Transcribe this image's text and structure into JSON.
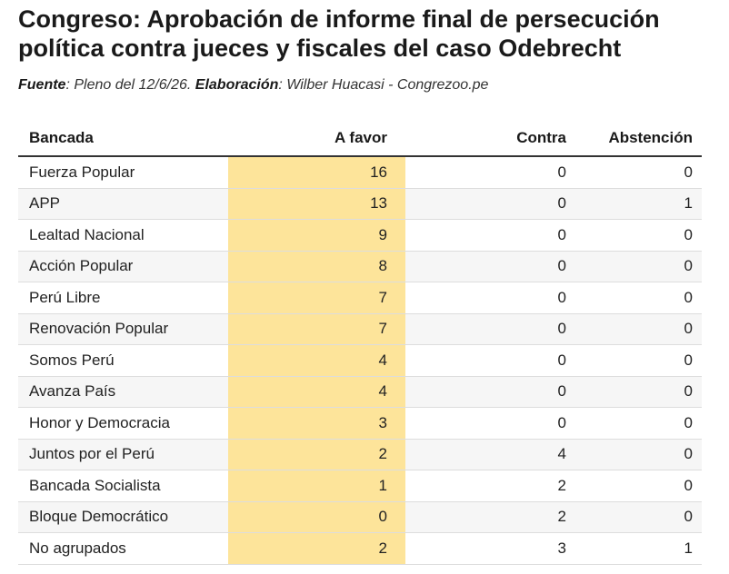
{
  "header": {
    "title": "Congreso: Aprobación de informe final de persecución política contra jueces y fiscales del caso Odebrecht",
    "source_label": "Fuente",
    "source_text": ": Pleno del 12/6/26. ",
    "credit_label": "Elaboración",
    "credit_text": ": Wilber Huacasi - Congrezoo.pe"
  },
  "colors": {
    "highlight": "#fde49a",
    "stripe": "#f6f6f6"
  },
  "chart_data": {
    "type": "table",
    "columns": [
      "Bancada",
      "A favor",
      "Contra",
      "Abstención"
    ],
    "rows": [
      {
        "bancada": "Fuerza Popular",
        "a_favor": "16",
        "contra": "0",
        "abstencion": "0"
      },
      {
        "bancada": "APP",
        "a_favor": "13",
        "contra": "0",
        "abstencion": "1"
      },
      {
        "bancada": "Lealtad Nacional",
        "a_favor": "9",
        "contra": "0",
        "abstencion": "0"
      },
      {
        "bancada": "Acción Popular",
        "a_favor": "8",
        "contra": "0",
        "abstencion": "0"
      },
      {
        "bancada": "Perú Libre",
        "a_favor": "7",
        "contra": "0",
        "abstencion": "0"
      },
      {
        "bancada": "Renovación Popular",
        "a_favor": "7",
        "contra": "0",
        "abstencion": "0"
      },
      {
        "bancada": "Somos Perú",
        "a_favor": "4",
        "contra": "0",
        "abstencion": "0"
      },
      {
        "bancada": "Avanza País",
        "a_favor": "4",
        "contra": "0",
        "abstencion": "0"
      },
      {
        "bancada": "Honor y Democracia",
        "a_favor": "3",
        "contra": "0",
        "abstencion": "0"
      },
      {
        "bancada": "Juntos por el Perú",
        "a_favor": "2",
        "contra": "4",
        "abstencion": "0"
      },
      {
        "bancada": "Bancada Socialista",
        "a_favor": "1",
        "contra": "2",
        "abstencion": "0"
      },
      {
        "bancada": "Bloque Democrático",
        "a_favor": "0",
        "contra": "2",
        "abstencion": "0"
      },
      {
        "bancada": "No agrupados",
        "a_favor": "2",
        "contra": "3",
        "abstencion": "1"
      }
    ]
  }
}
